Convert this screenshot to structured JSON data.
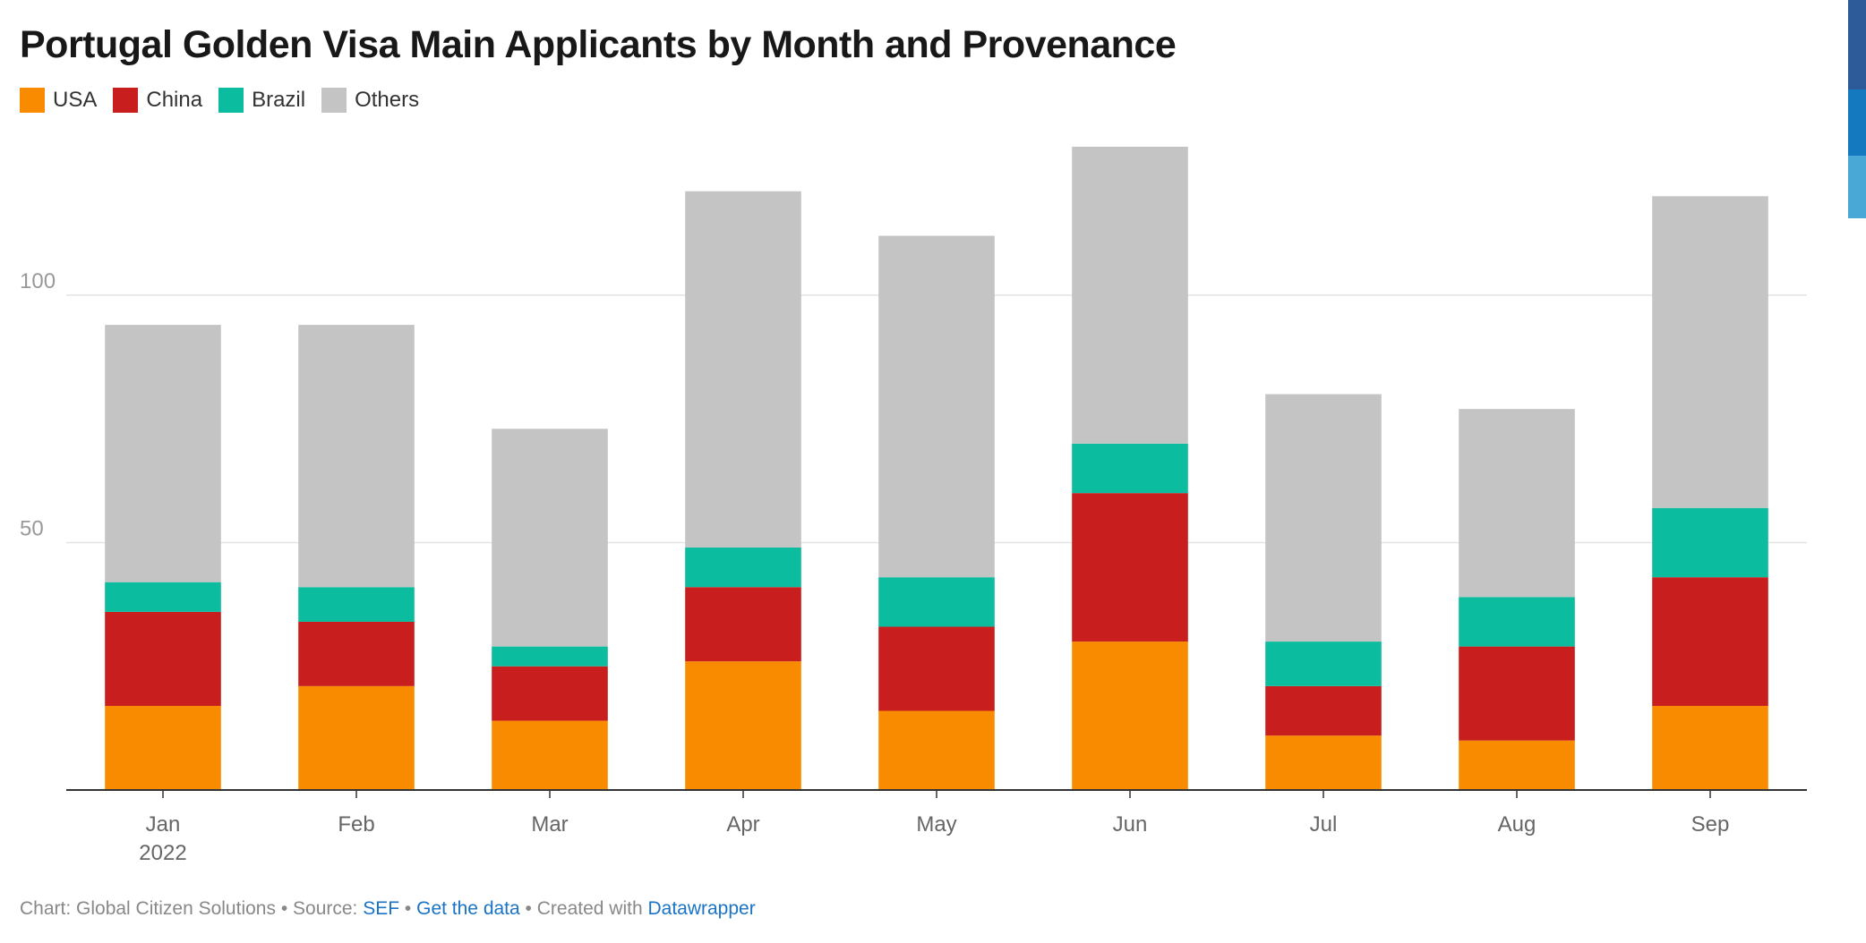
{
  "chart_data": {
    "type": "bar",
    "stacked": true,
    "title": "Portugal Golden Visa Main Applicants by Month and Provenance",
    "categories": [
      "Jan",
      "Feb",
      "Mar",
      "Apr",
      "May",
      "Jun",
      "Jul",
      "Aug",
      "Sep"
    ],
    "year_label": "2022",
    "series": [
      {
        "name": "USA",
        "color": "#f98b00",
        "values": [
          17,
          21,
          14,
          26,
          16,
          30,
          11,
          10,
          17
        ]
      },
      {
        "name": "China",
        "color": "#c91e1e",
        "values": [
          19,
          13,
          11,
          15,
          17,
          30,
          10,
          19,
          26
        ]
      },
      {
        "name": "Brazil",
        "color": "#0bbc9f",
        "values": [
          6,
          7,
          4,
          8,
          10,
          10,
          9,
          10,
          14
        ]
      },
      {
        "name": "Others",
        "color": "#c4c4c4",
        "values": [
          52,
          53,
          44,
          72,
          69,
          60,
          50,
          38,
          63
        ]
      }
    ],
    "yticks": [
      50,
      100
    ],
    "ylim": [
      0,
      130
    ],
    "grid": true,
    "legend_position": "top-left"
  },
  "side_strip_colors": [
    "#2d5b99",
    "#1579c0",
    "#4aa8d6"
  ],
  "footer": {
    "chart_credit": "Chart: Global Citizen Solutions",
    "sep1": " • ",
    "source_label": "Source: ",
    "source_link": "SEF",
    "sep2": " • ",
    "get_data": "Get the data",
    "sep3": " • ",
    "created_with": "Created with ",
    "tool_link": "Datawrapper"
  }
}
